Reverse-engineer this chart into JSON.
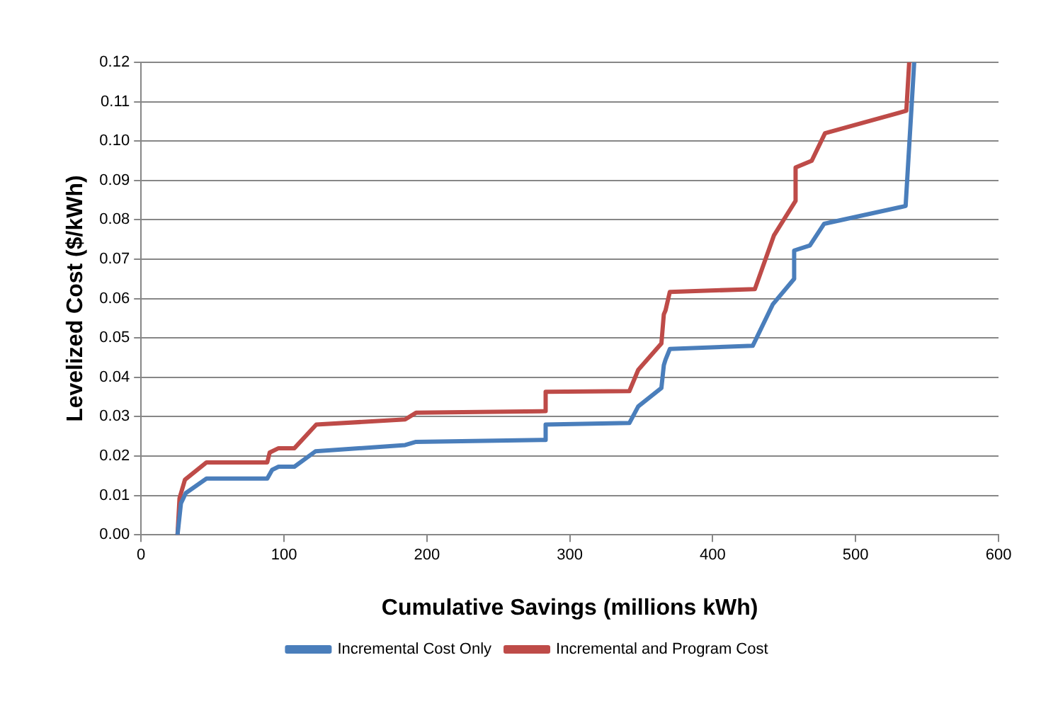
{
  "chart_data": {
    "type": "line",
    "xlabel": "Cumulative Savings (millions kWh)",
    "ylabel": "Levelized Cost ($/kWh)",
    "series": [
      {
        "name": "Incremental Cost Only",
        "color": "#4a7ebb",
        "x": [
          25.5,
          27.9,
          31.3,
          45.8,
          88.3,
          91.7,
          96.2,
          107.3,
          122,
          184.8,
          192.4,
          283.1,
          283.1,
          341.7,
          347.9,
          364.1,
          365.8,
          367,
          370,
          428,
          442,
          457,
          457,
          468,
          478,
          535,
          541
        ],
        "values": [
          0,
          0.008,
          0.0106,
          0.0143,
          0.0143,
          0.0165,
          0.0173,
          0.0173,
          0.0212,
          0.0228,
          0.0236,
          0.0241,
          0.028,
          0.0284,
          0.0326,
          0.0373,
          0.0431,
          0.0445,
          0.0472,
          0.048,
          0.0585,
          0.065,
          0.0722,
          0.0735,
          0.079,
          0.0835,
          0.12
        ]
      },
      {
        "name": "Incremental and Program Cost",
        "color": "#be4b48",
        "x": [
          25.5,
          26.9,
          30.7,
          45.8,
          88.3,
          90,
          96.2,
          107.3,
          122.6,
          184.8,
          192.4,
          283.1,
          283.1,
          341.7,
          347.9,
          364.1,
          365.8,
          367,
          370,
          429.5,
          442.8,
          458,
          458,
          469.3,
          478.6,
          535.5,
          537.5
        ],
        "values": [
          0,
          0.0093,
          0.014,
          0.0184,
          0.0184,
          0.0209,
          0.022,
          0.022,
          0.028,
          0.0293,
          0.031,
          0.0314,
          0.0363,
          0.0365,
          0.0419,
          0.0486,
          0.056,
          0.057,
          0.0617,
          0.0624,
          0.076,
          0.0848,
          0.0933,
          0.095,
          0.102,
          0.1077,
          0.12
        ]
      }
    ],
    "xlim": [
      0,
      600
    ],
    "xticks": [
      0,
      100,
      200,
      300,
      400,
      500,
      600
    ],
    "ylim": [
      0,
      0.12
    ],
    "yticks": [
      {
        "value": 0,
        "label": "0.00"
      },
      {
        "value": 0.01,
        "label": "0.01"
      },
      {
        "value": 0.02,
        "label": "0.02"
      },
      {
        "value": 0.03,
        "label": "0.03"
      },
      {
        "value": 0.04,
        "label": "0.04"
      },
      {
        "value": 0.05,
        "label": "0.05"
      },
      {
        "value": 0.06,
        "label": "0.06"
      },
      {
        "value": 0.07,
        "label": "0.07"
      },
      {
        "value": 0.08,
        "label": "0.08"
      },
      {
        "value": 0.09,
        "label": "0.09"
      },
      {
        "value": 0.1,
        "label": "0.10"
      },
      {
        "value": 0.11,
        "label": "0.11"
      },
      {
        "value": 0.12,
        "label": "0.12"
      }
    ],
    "grid": "y",
    "legend": "bottom",
    "marker": "none",
    "line_style": "solid"
  }
}
